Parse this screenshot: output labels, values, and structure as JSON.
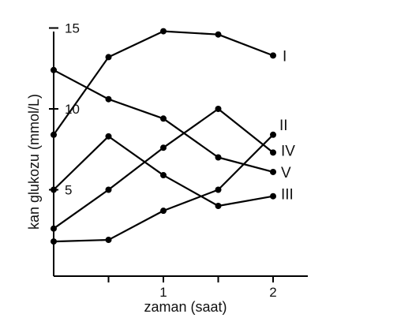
{
  "chart_data": {
    "type": "line",
    "title": "",
    "xlabel": "zaman (saat)",
    "ylabel": "kan glukozu (mmol/L)",
    "xlim": [
      0,
      2.3
    ],
    "ylim": [
      0,
      15
    ],
    "x_ticks": [
      0.5,
      1,
      1.5,
      2
    ],
    "x_tick_labels": [
      {
        "x": 1,
        "label": "1"
      },
      {
        "x": 2,
        "label": "2"
      }
    ],
    "y_ticks": [
      5,
      10,
      15
    ],
    "y_tick_labels": [
      {
        "y": 5,
        "label": "5"
      },
      {
        "y": 10,
        "label": "10"
      },
      {
        "y": 15,
        "label": "15"
      }
    ],
    "x": [
      0,
      0.5,
      1,
      1.5,
      2
    ],
    "series": [
      {
        "name": "I",
        "values": [
          8.4,
          13.2,
          14.8,
          14.6,
          13.3
        ]
      },
      {
        "name": "II",
        "values": [
          1.8,
          1.9,
          3.7,
          5.0,
          8.4
        ]
      },
      {
        "name": "III",
        "values": [
          5.0,
          8.3,
          5.9,
          4.0,
          4.6
        ]
      },
      {
        "name": "IV",
        "values": [
          2.6,
          5.0,
          7.6,
          10.0,
          7.3
        ]
      },
      {
        "name": "V",
        "values": [
          12.4,
          10.6,
          9.4,
          7.0,
          6.1
        ]
      }
    ],
    "grid": false,
    "legend": "none",
    "line_color": "#000000"
  }
}
